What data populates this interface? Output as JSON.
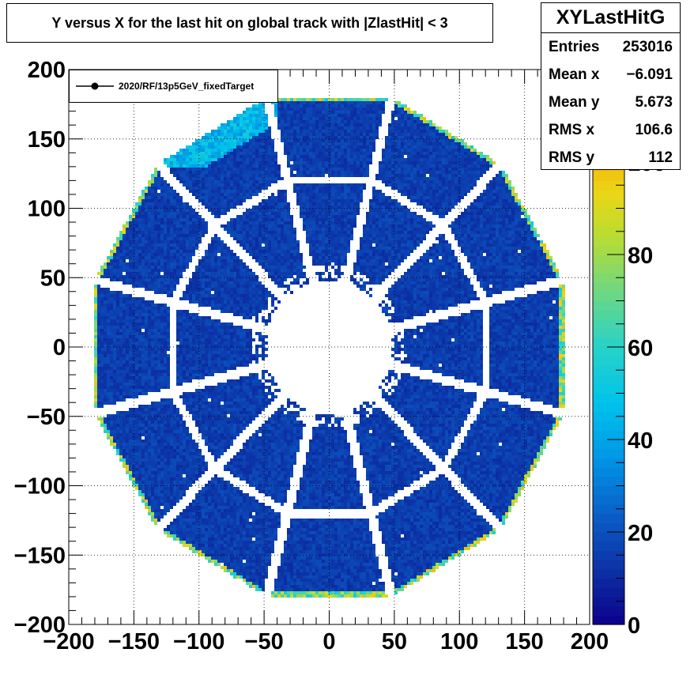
{
  "chart_data": {
    "type": "heatmap",
    "title": "Y versus X for the last hit on global track with |ZlastHit| < 3",
    "histogram_name": "XYLastHitG",
    "stats": [
      {
        "label": "Entries",
        "value": "253016"
      },
      {
        "label": "Mean x",
        "value": "−6.091"
      },
      {
        "label": "Mean y",
        "value": "5.673"
      },
      {
        "label": "RMS x",
        "value": "106.6"
      },
      {
        "label": "RMS y",
        "value": "112"
      }
    ],
    "legend": {
      "entries": [
        "2020/RF/13p5GeV_fixedTarget"
      ],
      "placement": "top-left"
    },
    "xlim": [
      -200,
      200
    ],
    "ylim": [
      -200,
      200
    ],
    "x_ticks": [
      -200,
      -150,
      -100,
      -50,
      0,
      50,
      100,
      150,
      200
    ],
    "y_ticks": [
      -200,
      -150,
      -100,
      -50,
      0,
      50,
      100,
      150,
      200
    ],
    "x_tick_labels": [
      "−200",
      "−150",
      "−100",
      "−50",
      "0",
      "50",
      "100",
      "150",
      "200"
    ],
    "y_tick_labels": [
      "−200",
      "−150",
      "−100",
      "−50",
      "0",
      "50",
      "100",
      "150",
      "200"
    ],
    "colorbar": {
      "range": [
        0,
        120
      ],
      "ticks": [
        0,
        20,
        40,
        60,
        80,
        100
      ],
      "palette": "rainbow"
    },
    "grid": true,
    "detector": {
      "sectors": 12,
      "outer_radius_flat": 180,
      "outer_rows_inner_radius": 120,
      "inner_rows_inner_radius": 52,
      "typical_count": 15,
      "edge_count": 90,
      "hot_region_count": 50
    },
    "colors": {
      "background": "#ffffff",
      "low": "#0c3ea4",
      "typical": "#1546a8",
      "edge_high": "#e8d21c",
      "grid": "#000000"
    }
  }
}
